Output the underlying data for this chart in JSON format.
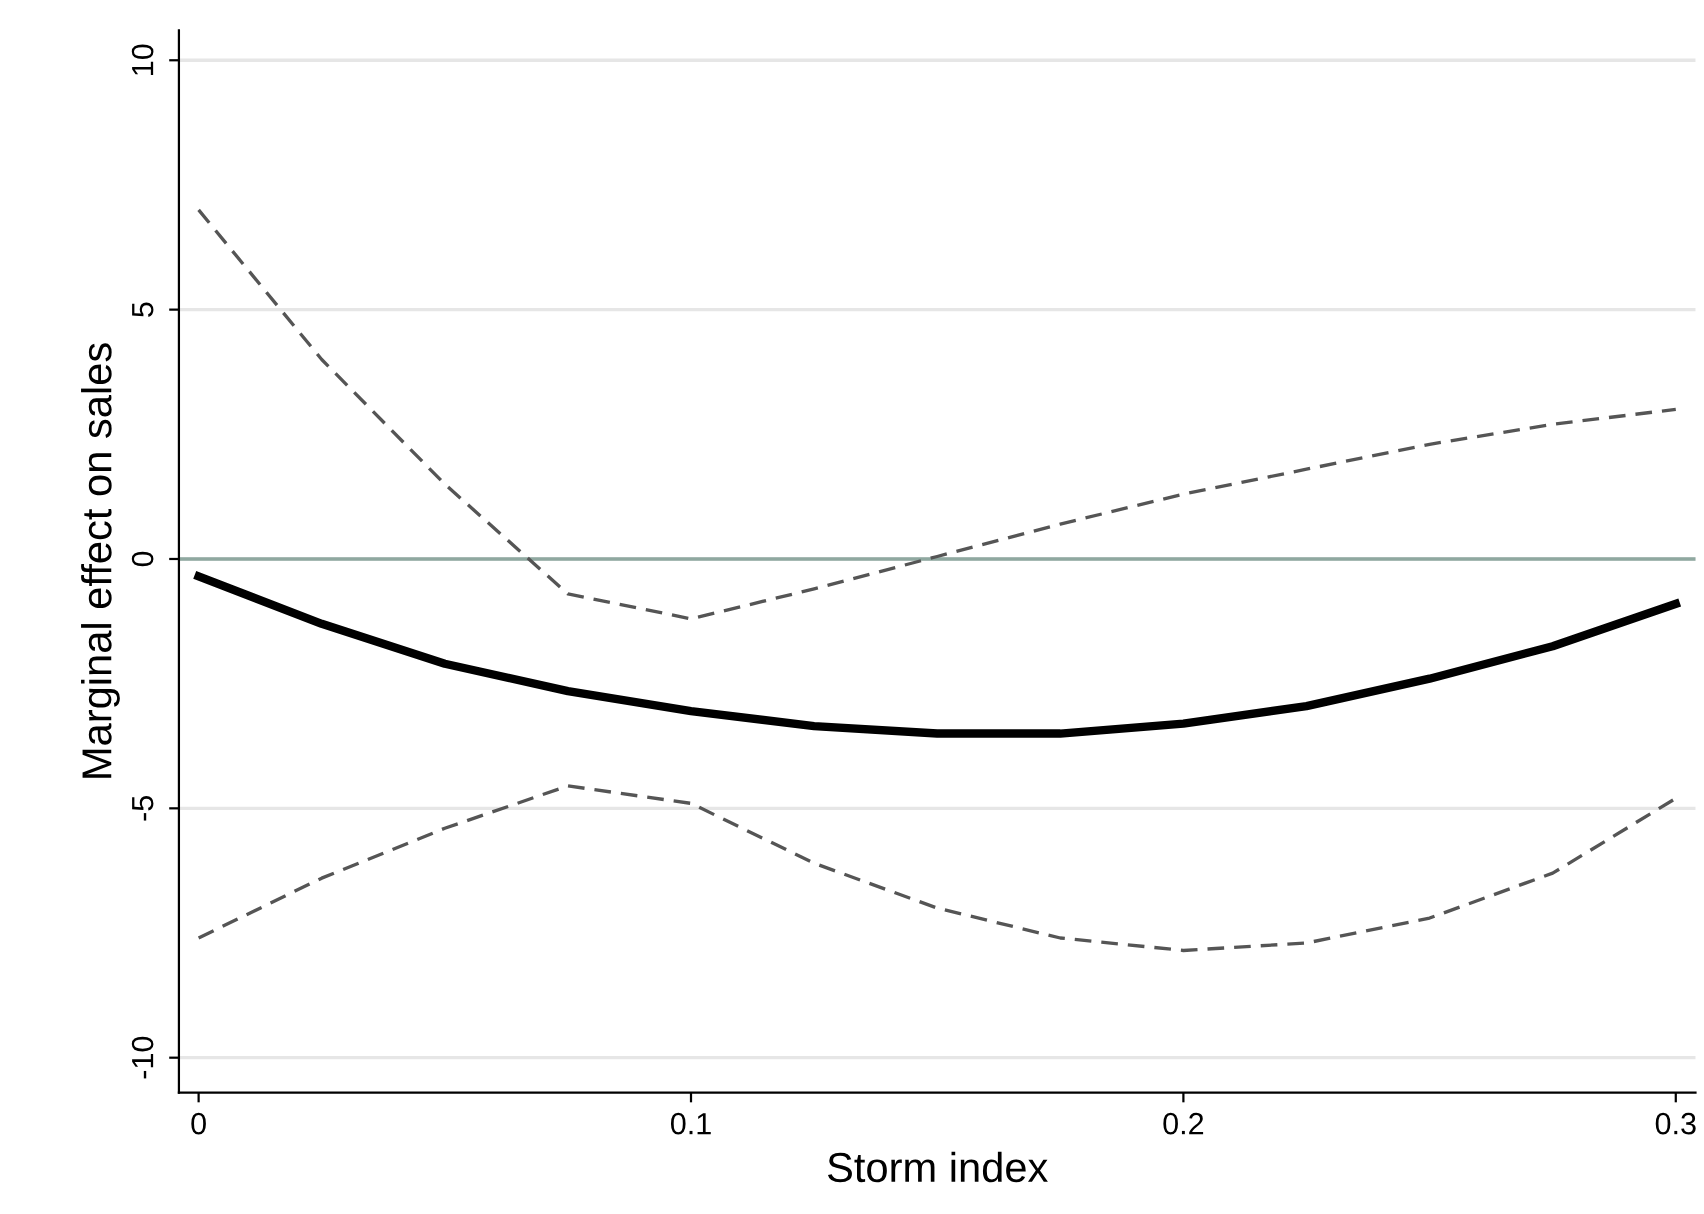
{
  "chart_data": {
    "type": "line",
    "xlabel": "Storm index",
    "ylabel": "Marginal effect on sales",
    "x": [
      0,
      0.025,
      0.05,
      0.075,
      0.1,
      0.125,
      0.15,
      0.175,
      0.2,
      0.225,
      0.25,
      0.275,
      0.3
    ],
    "series": [
      {
        "color": "#000000",
        "line_style": "solid",
        "values": [
          -0.35,
          -1.3,
          -2.1,
          -2.65,
          -3.05,
          -3.35,
          -3.5,
          -3.5,
          -3.3,
          -2.95,
          -2.4,
          -1.75,
          -0.9
        ]
      },
      {
        "color": "#555555",
        "line_style": "dashed",
        "values": [
          7.0,
          4.0,
          1.5,
          -0.7,
          -1.2,
          -0.6,
          0.05,
          0.7,
          1.3,
          1.8,
          2.3,
          2.7,
          3.0
        ]
      },
      {
        "color": "#555555",
        "line_style": "dashed",
        "values": [
          -7.6,
          -6.4,
          -5.4,
          -4.55,
          -4.9,
          -6.1,
          -7.0,
          -7.6,
          -7.85,
          -7.7,
          -7.2,
          -6.3,
          -4.8
        ]
      }
    ],
    "xlim": [
      -0.004,
      0.304
    ],
    "ylim": [
      -10.7,
      10.6
    ],
    "xticks": [
      0,
      0.1,
      0.2,
      0.3
    ],
    "yticks": [
      {
        "value": -10,
        "label": "-10"
      },
      {
        "value": -5,
        "label": "-5"
      },
      0,
      5,
      10
    ],
    "ref_lines": [
      {
        "axis": "y",
        "value": 0,
        "color": "#8fa8a0"
      }
    ],
    "grid": "y",
    "legend": false
  }
}
